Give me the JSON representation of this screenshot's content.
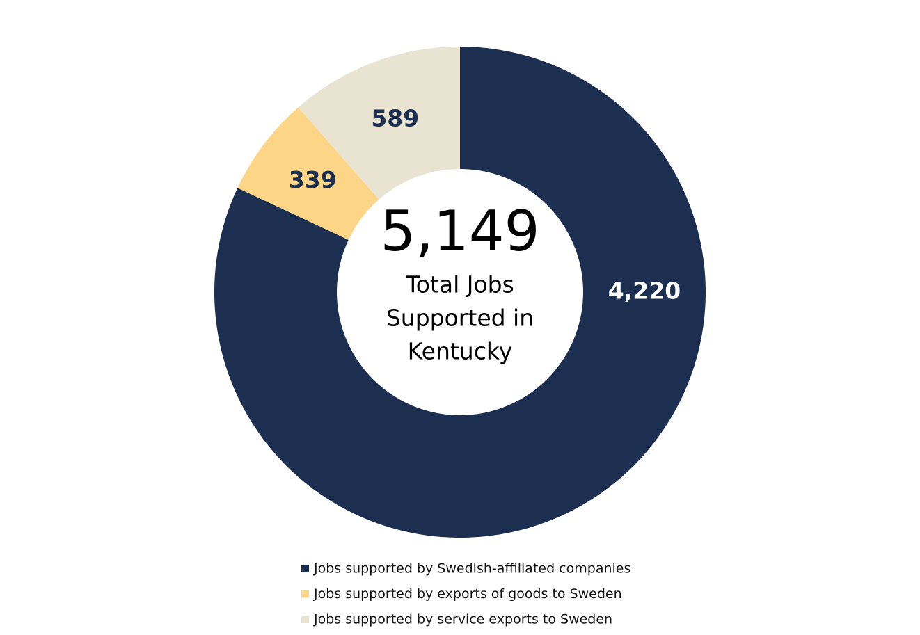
{
  "chart_data": {
    "type": "donut",
    "total": {
      "value": 5149,
      "label": "5,149"
    },
    "center_text": [
      "Total Jobs",
      "Supported in",
      "Kentucky"
    ],
    "series": [
      {
        "name": "Jobs supported by Swedish-affiliated companies",
        "color": "#1c2f50",
        "label_color": "#ffffff"
      },
      {
        "name": "Jobs supported by exports of goods to Sweden",
        "color": "#fdd587",
        "label_color": "#1c2f50"
      },
      {
        "name": "Jobs supported by service exports to Sweden",
        "color": "#e8e4d1",
        "label_color": "#1c2f50"
      }
    ],
    "values": [
      4220,
      339,
      589
    ],
    "value_labels": [
      "4,220",
      "339",
      "589"
    ]
  }
}
